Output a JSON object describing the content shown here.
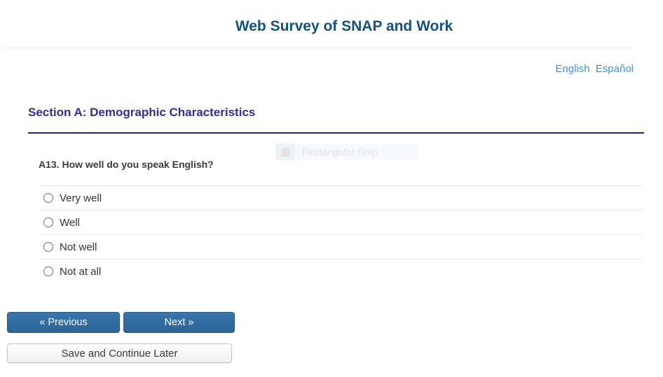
{
  "header": {
    "title": "Web Survey of SNAP and Work"
  },
  "language": {
    "english": "English",
    "espanol": "Español"
  },
  "section": {
    "heading": "Section A: Demographic Characteristics"
  },
  "question": {
    "label": "A13. How well do you speak English?",
    "options": [
      {
        "label": "Very well",
        "selected": false
      },
      {
        "label": "Well",
        "selected": false
      },
      {
        "label": "Not well",
        "selected": false
      },
      {
        "label": "Not at all",
        "selected": false
      }
    ]
  },
  "snip_overlay": {
    "label": "Rectangular Snip",
    "icon": "rectangular-snip-icon"
  },
  "buttons": {
    "previous": "« Previous",
    "next": "Next »",
    "save": "Save and Continue Later"
  },
  "colors": {
    "title_blue": "#14527e",
    "section_indigo": "#2e2e9e",
    "section_rule_navy": "#23238b",
    "link_blue": "#4a90d2",
    "button_blue": "#2d6494",
    "divider_gray": "#e9e9e9"
  }
}
